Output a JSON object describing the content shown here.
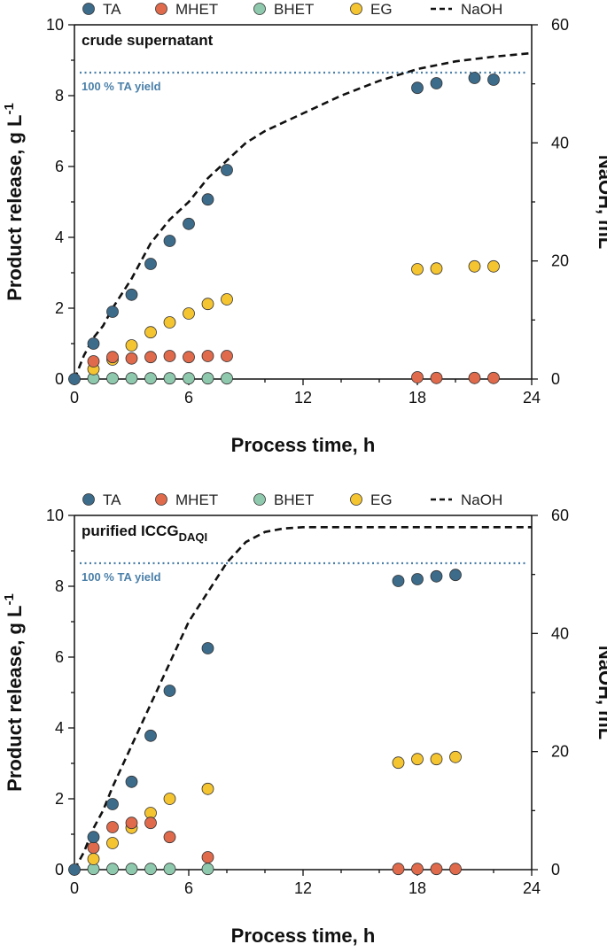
{
  "colors": {
    "TA": "#3d6b8a",
    "MHET": "#e06a4c",
    "BHET": "#8fc9ad",
    "EG": "#f5c431",
    "NaOH": "#111111",
    "yield_line": "#4a7fa8",
    "yield_text": "#4a7fa8"
  },
  "chart_data": [
    {
      "type": "scatter",
      "title": "crude supernatant",
      "xlabel": "Process time, h",
      "ylabel": "Product release, g L",
      "ylabel_sup": "-1",
      "y2label": "NaOH, mL",
      "xlim": [
        0,
        24
      ],
      "ylim": [
        0,
        10
      ],
      "y2lim": [
        0,
        60
      ],
      "xticks": [
        0,
        6,
        12,
        18,
        24
      ],
      "yticks": [
        0,
        2,
        4,
        6,
        8,
        10
      ],
      "y2ticks": [
        0,
        20,
        40,
        60
      ],
      "legend": [
        "TA",
        "MHET",
        "BHET",
        "EG",
        "NaOH"
      ],
      "legend_position": "top",
      "annotation": "100 % TA yield",
      "reference_line": 8.65,
      "series": [
        {
          "name": "TA",
          "axis": "left",
          "x": [
            0,
            1,
            2,
            3,
            4,
            5,
            6,
            7,
            8,
            18,
            19,
            21,
            22
          ],
          "values": [
            0,
            1.0,
            1.9,
            2.38,
            3.25,
            3.9,
            4.38,
            5.07,
            5.9,
            8.22,
            8.35,
            8.5,
            8.45
          ]
        },
        {
          "name": "MHET",
          "axis": "left",
          "x": [
            1,
            2,
            3,
            4,
            5,
            6,
            7,
            8,
            18,
            19,
            21,
            22
          ],
          "values": [
            0.5,
            0.62,
            0.58,
            0.62,
            0.65,
            0.62,
            0.65,
            0.65,
            0.05,
            0.03,
            0.03,
            0.03
          ]
        },
        {
          "name": "BHET",
          "axis": "left",
          "x": [
            1,
            2,
            3,
            4,
            5,
            6,
            7,
            8
          ],
          "values": [
            0.02,
            0.02,
            0.02,
            0.02,
            0.02,
            0.02,
            0.02,
            0.02
          ]
        },
        {
          "name": "EG",
          "axis": "left",
          "x": [
            1,
            2,
            3,
            4,
            5,
            6,
            7,
            8,
            18,
            19,
            21,
            22
          ],
          "values": [
            0.28,
            0.55,
            0.95,
            1.32,
            1.6,
            1.85,
            2.12,
            2.25,
            3.1,
            3.12,
            3.18,
            3.18
          ]
        },
        {
          "name": "NaOH",
          "axis": "right",
          "style": "dashed-line",
          "x": [
            0,
            0.5,
            1,
            1.5,
            2,
            3,
            4,
            5,
            6,
            7,
            8,
            9,
            10,
            12,
            14,
            16,
            18,
            20,
            22,
            24
          ],
          "values": [
            0,
            4,
            7,
            9,
            12,
            17,
            23,
            27,
            30,
            34,
            37,
            40,
            42,
            45,
            48,
            50.5,
            52.5,
            53.8,
            54.6,
            55.2
          ]
        }
      ]
    },
    {
      "type": "scatter",
      "title": "purified ICCG",
      "title_sub": "DAQI",
      "xlabel": "Process time, h",
      "ylabel": "Product release, g L",
      "ylabel_sup": "-1",
      "y2label": "NaOH, mL",
      "xlim": [
        0,
        24
      ],
      "ylim": [
        0,
        10
      ],
      "y2lim": [
        0,
        60
      ],
      "xticks": [
        0,
        6,
        12,
        18,
        24
      ],
      "yticks": [
        0,
        2,
        4,
        6,
        8,
        10
      ],
      "y2ticks": [
        0,
        20,
        40,
        60
      ],
      "legend": [
        "TA",
        "MHET",
        "BHET",
        "EG",
        "NaOH"
      ],
      "legend_position": "top",
      "annotation": "100 % TA yield",
      "reference_line": 8.65,
      "series": [
        {
          "name": "TA",
          "axis": "left",
          "x": [
            0,
            1,
            2,
            3,
            4,
            5,
            7,
            17,
            18,
            19,
            20
          ],
          "values": [
            0,
            0.92,
            1.85,
            2.48,
            3.78,
            5.05,
            6.25,
            8.15,
            8.2,
            8.28,
            8.32
          ]
        },
        {
          "name": "MHET",
          "axis": "left",
          "x": [
            1,
            2,
            3,
            4,
            5,
            7,
            17,
            18,
            19,
            20
          ],
          "values": [
            0.62,
            1.2,
            1.32,
            1.32,
            0.92,
            0.35,
            0.02,
            0.02,
            0.02,
            0.02
          ]
        },
        {
          "name": "BHET",
          "axis": "left",
          "x": [
            1,
            2,
            3,
            4,
            5,
            7
          ],
          "values": [
            0.02,
            0.02,
            0.02,
            0.02,
            0.02,
            0.02
          ]
        },
        {
          "name": "EG",
          "axis": "left",
          "x": [
            1,
            2,
            3,
            4,
            5,
            7,
            17,
            18,
            19,
            20
          ],
          "values": [
            0.3,
            0.75,
            1.18,
            1.6,
            2.0,
            2.28,
            3.02,
            3.12,
            3.12,
            3.18
          ]
        },
        {
          "name": "NaOH",
          "axis": "right",
          "style": "dashed-line",
          "x": [
            0,
            0.5,
            1,
            1.5,
            2,
            3,
            4,
            5,
            6,
            7,
            8,
            9,
            10,
            11,
            12,
            14,
            18,
            24
          ],
          "values": [
            0,
            3,
            7,
            10,
            14,
            21,
            28,
            35,
            42,
            47,
            52,
            55.5,
            57.2,
            57.8,
            58,
            58,
            58,
            58
          ]
        }
      ]
    }
  ]
}
